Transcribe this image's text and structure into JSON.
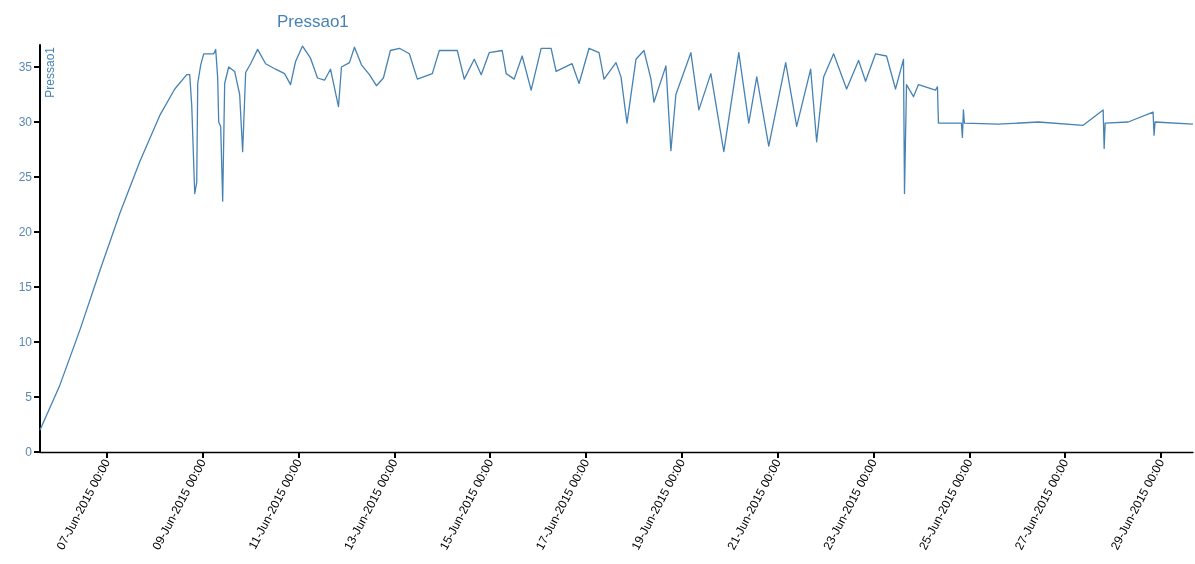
{
  "chart_data": {
    "type": "line",
    "title": "Pressao1",
    "ylabel": "Pressao1",
    "color": "#4682b4",
    "x": [
      "2015-06-05T14:30",
      "2015-06-06T00:30",
      "2015-06-06T10:30",
      "2015-06-06T20:30",
      "2015-06-07T06:30",
      "2015-06-07T16:30",
      "2015-06-08T02:30",
      "2015-06-08T10:00",
      "2015-06-08T16:00",
      "2015-06-08T17:30",
      "2015-06-08T18:30",
      "2015-06-08T20:00",
      "2015-06-08T21:00",
      "2015-06-08T21:30",
      "2015-06-08T23:00",
      "2015-06-09T00:30",
      "2015-06-09T05:30",
      "2015-06-09T06:30",
      "2015-06-09T07:30",
      "2015-06-09T08:00",
      "2015-06-09T09:00",
      "2015-06-09T10:00",
      "2015-06-09T11:00",
      "2015-06-09T13:00",
      "2015-06-09T16:00",
      "2015-06-09T18:30",
      "2015-06-09T20:00",
      "2015-06-09T21:30",
      "2015-06-10T00:00",
      "2015-06-10T03:30",
      "2015-06-10T07:30",
      "2015-06-10T12:30",
      "2015-06-10T17:00",
      "2015-06-10T20:00",
      "2015-06-10T22:30",
      "2015-06-11T02:00",
      "2015-06-11T06:00",
      "2015-06-11T09:30",
      "2015-06-11T13:00",
      "2015-06-11T16:00",
      "2015-06-11T20:00",
      "2015-06-11T21:30",
      "2015-06-12T01:30",
      "2015-06-12T04:00",
      "2015-06-12T07:30",
      "2015-06-12T11:30",
      "2015-06-12T15:00",
      "2015-06-12T18:30",
      "2015-06-12T22:00",
      "2015-06-13T02:30",
      "2015-06-13T07:30",
      "2015-06-13T11:30",
      "2015-06-13T19:00",
      "2015-06-13T22:30",
      "2015-06-14T07:30",
      "2015-06-14T11:00",
      "2015-06-14T16:00",
      "2015-06-14T19:30",
      "2015-06-14T23:30",
      "2015-06-15T06:00",
      "2015-06-15T08:00",
      "2015-06-15T12:00",
      "2015-06-15T16:00",
      "2015-06-15T20:30",
      "2015-06-16T01:30",
      "2015-06-16T06:30",
      "2015-06-16T09:00",
      "2015-06-16T17:00",
      "2015-06-16T20:30",
      "2015-06-17T01:30",
      "2015-06-17T06:30",
      "2015-06-17T09:00",
      "2015-06-17T15:00",
      "2015-06-17T17:30",
      "2015-06-17T20:30",
      "2015-06-18T01:00",
      "2015-06-18T05:00",
      "2015-06-18T08:30",
      "2015-06-18T10:00",
      "2015-06-18T16:00",
      "2015-06-18T18:30",
      "2015-06-18T21:00",
      "2015-06-19T04:30",
      "2015-06-19T08:30",
      "2015-06-19T14:30",
      "2015-06-19T21:00",
      "2015-06-20T04:30",
      "2015-06-20T09:30",
      "2015-06-20T13:30",
      "2015-06-20T19:30",
      "2015-06-21T04:00",
      "2015-06-21T09:30",
      "2015-06-21T16:30",
      "2015-06-21T19:30",
      "2015-06-21T23:00",
      "2015-06-22T04:00",
      "2015-06-22T10:30",
      "2015-06-22T16:30",
      "2015-06-22T20:00",
      "2015-06-23T01:00",
      "2015-06-23T06:30",
      "2015-06-23T11:00",
      "2015-06-23T15:00",
      "2015-06-23T15:30",
      "2015-06-23T16:30",
      "2015-06-23T20:00",
      "2015-06-23T22:30",
      "2015-06-24T07:00",
      "2015-06-24T08:00",
      "2015-06-24T08:30",
      "2015-06-24T20:00",
      "2015-06-24T20:30",
      "2015-06-24T21:00",
      "2015-06-24T21:30",
      "2015-06-25T14:30",
      "2015-06-26T10:30",
      "2015-06-27T09:00",
      "2015-06-27T19:00",
      "2015-06-27T19:30",
      "2015-06-27T20:00",
      "2015-06-28T07:30",
      "2015-06-28T20:00",
      "2015-06-28T20:30",
      "2015-06-28T21:00",
      "2015-06-29T16:00"
    ],
    "values": [
      2.0,
      6.1,
      11.1,
      16.5,
      21.7,
      26.4,
      30.6,
      33.0,
      34.3,
      34.3,
      31.5,
      23.5,
      24.5,
      33.5,
      35.2,
      36.2,
      36.2,
      36.6,
      34.0,
      30.0,
      29.6,
      22.8,
      33.5,
      35.0,
      34.6,
      32.5,
      27.3,
      34.5,
      35.3,
      36.6,
      35.3,
      34.8,
      34.4,
      33.4,
      35.5,
      36.9,
      35.8,
      34.0,
      33.8,
      34.8,
      31.4,
      35.0,
      35.4,
      36.8,
      35.2,
      34.3,
      33.3,
      34.0,
      36.5,
      36.7,
      36.2,
      33.9,
      34.4,
      36.5,
      36.5,
      33.9,
      35.7,
      34.3,
      36.3,
      36.5,
      34.4,
      33.9,
      36.0,
      32.9,
      36.7,
      36.7,
      34.6,
      35.3,
      33.5,
      36.7,
      36.3,
      33.9,
      35.4,
      34.1,
      29.9,
      35.7,
      36.5,
      33.9,
      31.8,
      35.1,
      27.4,
      32.5,
      36.3,
      31.1,
      34.4,
      27.3,
      36.3,
      29.9,
      34.1,
      27.8,
      35.4,
      29.6,
      34.8,
      28.2,
      34.1,
      36.2,
      33.0,
      35.6,
      33.7,
      36.2,
      36.0,
      33.0,
      35.7,
      23.5,
      33.4,
      32.3,
      33.4,
      32.9,
      33.2,
      29.9,
      29.9,
      28.6,
      31.1,
      29.9,
      29.8,
      30.0,
      29.7,
      31.1,
      27.6,
      29.9,
      30.0,
      30.9,
      28.8,
      30.0,
      29.8
    ],
    "xlim": [
      "2015-06-05T14:30",
      "2015-06-29T16:00"
    ],
    "xticks": [
      {
        "value": "2015-06-07",
        "label": "07-Jun-2015 00:00"
      },
      {
        "value": "2015-06-09",
        "label": "09-Jun-2015 00:00"
      },
      {
        "value": "2015-06-11",
        "label": "11-Jun-2015 00:00"
      },
      {
        "value": "2015-06-13",
        "label": "13-Jun-2015 00:00"
      },
      {
        "value": "2015-06-15",
        "label": "15-Jun-2015 00:00"
      },
      {
        "value": "2015-06-17",
        "label": "17-Jun-2015 00:00"
      },
      {
        "value": "2015-06-19",
        "label": "19-Jun-2015 00:00"
      },
      {
        "value": "2015-06-21",
        "label": "21-Jun-2015 00:00"
      },
      {
        "value": "2015-06-23",
        "label": "23-Jun-2015 00:00"
      },
      {
        "value": "2015-06-25",
        "label": "25-Jun-2015 00:00"
      },
      {
        "value": "2015-06-27",
        "label": "27-Jun-2015 00:00"
      },
      {
        "value": "2015-06-29",
        "label": "29-Jun-2015 00:00"
      }
    ],
    "ylim": [
      0,
      37
    ],
    "yticks": [
      0,
      5,
      10,
      15,
      20,
      25,
      30,
      35
    ]
  }
}
